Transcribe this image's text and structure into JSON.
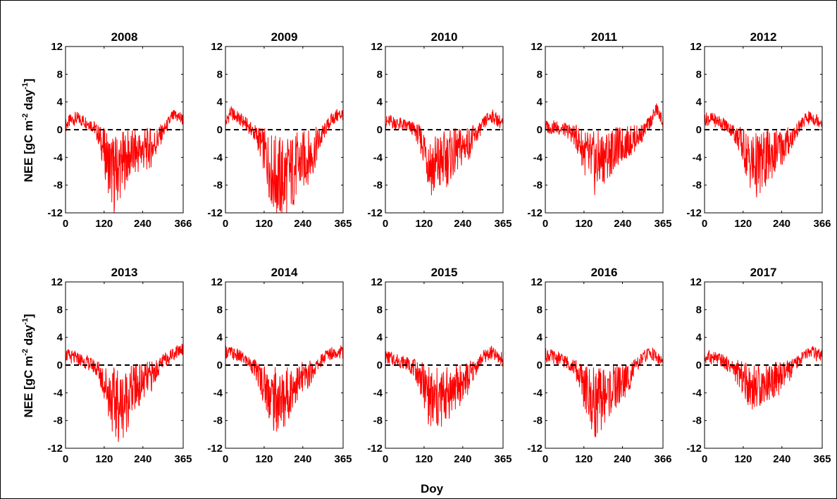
{
  "chart_data": {
    "type": "line",
    "figure": {
      "xlabel": "Doy",
      "ylabel": "NEE [gC m",
      "ylabel_sup1": "-2",
      "ylabel_mid": " day",
      "ylabel_sup2": "-1",
      "ylabel_end": "]"
    },
    "colors": {
      "series": "#ff0000",
      "zero_line": "#000000",
      "frame": "#000000",
      "border": "#000000"
    },
    "zero_line_style": "dashed",
    "grid": false,
    "panels": [
      {
        "title": "2008",
        "xlim": [
          0,
          366
        ],
        "ylim": [
          -12,
          12
        ],
        "xticks": [
          0,
          120,
          240,
          366
        ],
        "xtick_labels": [
          "0",
          "120",
          "240",
          "366"
        ],
        "yticks": [
          12,
          8,
          4,
          0,
          -4,
          -8,
          -12
        ],
        "ytick_labels": [
          "12",
          "8",
          "4",
          "0",
          "-4",
          "-8",
          "-12"
        ],
        "series": [
          {
            "x": [
              0,
              15,
              30,
              45,
              60,
              75,
              90,
              105,
              120,
              135,
              150,
              165,
              180,
              195,
              210,
              225,
              240,
              255,
              270,
              285,
              300,
              315,
              330,
              345,
              366
            ],
            "y": [
              0.6,
              1.3,
              1.6,
              1.5,
              1.2,
              0.9,
              0.3,
              -1.0,
              -3.0,
              -5.0,
              -6.5,
              -5.5,
              -4.5,
              -4.0,
              -3.5,
              -3.2,
              -3.0,
              -2.8,
              -2.5,
              -1.5,
              -0.5,
              0.5,
              1.8,
              2.0,
              1.5
            ]
          }
        ]
      },
      {
        "title": "2009",
        "xlim": [
          0,
          365
        ],
        "ylim": [
          -12,
          12
        ],
        "xticks": [
          0,
          120,
          240,
          365
        ],
        "xtick_labels": [
          "0",
          "120",
          "240",
          "365"
        ],
        "yticks": [
          12,
          8,
          4,
          0,
          -4,
          -8,
          -12
        ],
        "ytick_labels": [
          "12",
          "8",
          "4",
          "0",
          "-4",
          "-8",
          "-12"
        ],
        "series": [
          {
            "x": [
              0,
              15,
              30,
              45,
              60,
              75,
              90,
              105,
              120,
              135,
              150,
              165,
              180,
              195,
              210,
              225,
              240,
              255,
              270,
              285,
              300,
              315,
              330,
              345,
              365
            ],
            "y": [
              0.8,
              2.5,
              2.0,
              1.5,
              1.0,
              0.3,
              -0.5,
              -1.5,
              -3.0,
              -5.0,
              -6.5,
              -7.0,
              -7.2,
              -6.5,
              -6.0,
              -5.0,
              -4.5,
              -4.0,
              -3.5,
              -2.0,
              -0.8,
              0.5,
              1.5,
              2.0,
              2.3
            ]
          }
        ]
      },
      {
        "title": "2010",
        "xlim": [
          0,
          365
        ],
        "ylim": [
          -12,
          12
        ],
        "xticks": [
          0,
          120,
          240,
          365
        ],
        "xtick_labels": [
          "0",
          "120",
          "240",
          "365"
        ],
        "yticks": [
          12,
          8,
          4,
          0,
          -4,
          -8,
          -12
        ],
        "ytick_labels": [
          "12",
          "8",
          "4",
          "0",
          "-4",
          "-8",
          "-12"
        ],
        "series": [
          {
            "x": [
              0,
              15,
              30,
              45,
              60,
              75,
              90,
              105,
              120,
              135,
              150,
              165,
              180,
              195,
              210,
              225,
              240,
              255,
              270,
              285,
              300,
              315,
              330,
              345,
              365
            ],
            "y": [
              1.0,
              1.2,
              1.0,
              0.8,
              0.6,
              0.4,
              0.0,
              -1.0,
              -2.5,
              -4.5,
              -5.5,
              -5.0,
              -4.5,
              -4.0,
              -3.5,
              -3.0,
              -2.5,
              -2.0,
              -1.5,
              -0.5,
              0.5,
              1.5,
              2.0,
              1.5,
              0.8
            ]
          }
        ]
      },
      {
        "title": "2011",
        "xlim": [
          0,
          365
        ],
        "ylim": [
          -12,
          12
        ],
        "xticks": [
          0,
          120,
          240,
          365
        ],
        "xtick_labels": [
          "0",
          "120",
          "240",
          "365"
        ],
        "yticks": [
          12,
          8,
          4,
          0,
          -4,
          -8,
          -12
        ],
        "ytick_labels": [
          "12",
          "8",
          "4",
          "0",
          "-4",
          "-8",
          "-12"
        ],
        "series": [
          {
            "x": [
              0,
              15,
              30,
              45,
              60,
              75,
              90,
              105,
              120,
              135,
              150,
              165,
              180,
              195,
              210,
              225,
              240,
              255,
              270,
              285,
              300,
              315,
              330,
              345,
              365
            ],
            "y": [
              0.5,
              0.3,
              0.4,
              0.2,
              0.0,
              -0.3,
              -0.8,
              -1.8,
              -3.0,
              -4.5,
              -5.0,
              -4.5,
              -4.0,
              -3.5,
              -3.0,
              -2.5,
              -2.2,
              -1.8,
              -1.5,
              -1.0,
              -0.5,
              0.5,
              1.5,
              3.0,
              1.0
            ]
          }
        ]
      },
      {
        "title": "2012",
        "xlim": [
          0,
          366
        ],
        "ylim": [
          -12,
          12
        ],
        "xticks": [
          0,
          120,
          240,
          366
        ],
        "xtick_labels": [
          "0",
          "120",
          "240",
          "366"
        ],
        "yticks": [
          12,
          8,
          4,
          0,
          -4,
          -8,
          -12
        ],
        "ytick_labels": [
          "12",
          "8",
          "4",
          "0",
          "-4",
          "-8",
          "-12"
        ],
        "series": [
          {
            "x": [
              0,
              15,
              30,
              45,
              60,
              75,
              90,
              105,
              120,
              135,
              150,
              165,
              180,
              195,
              210,
              225,
              240,
              255,
              270,
              285,
              300,
              315,
              330,
              345,
              366
            ],
            "y": [
              1.5,
              1.6,
              1.4,
              1.2,
              0.8,
              0.3,
              -0.3,
              -1.2,
              -2.5,
              -4.0,
              -5.0,
              -5.2,
              -4.8,
              -4.0,
              -3.5,
              -3.0,
              -2.5,
              -2.0,
              -1.2,
              -0.3,
              0.8,
              1.5,
              1.8,
              1.5,
              1.2
            ]
          }
        ]
      },
      {
        "title": "2013",
        "xlim": [
          0,
          365
        ],
        "ylim": [
          -12,
          12
        ],
        "xticks": [
          0,
          120,
          240,
          365
        ],
        "xtick_labels": [
          "0",
          "120",
          "240",
          "365"
        ],
        "yticks": [
          12,
          8,
          4,
          0,
          -4,
          -8,
          -12
        ],
        "ytick_labels": [
          "12",
          "8",
          "4",
          "0",
          "-4",
          "-8",
          "-12"
        ],
        "series": [
          {
            "x": [
              0,
              15,
              30,
              45,
              60,
              75,
              90,
              105,
              120,
              135,
              150,
              165,
              180,
              195,
              210,
              225,
              240,
              255,
              270,
              285,
              300,
              315,
              330,
              345,
              365
            ],
            "y": [
              1.5,
              1.2,
              1.0,
              0.8,
              0.5,
              0.2,
              -0.2,
              -1.0,
              -2.5,
              -4.0,
              -5.5,
              -5.8,
              -5.5,
              -4.5,
              -3.5,
              -3.0,
              -2.5,
              -2.0,
              -1.5,
              -0.5,
              0.5,
              1.0,
              1.5,
              2.0,
              2.5
            ]
          }
        ]
      },
      {
        "title": "2014",
        "xlim": [
          0,
          365
        ],
        "ylim": [
          -12,
          12
        ],
        "xticks": [
          0,
          120,
          240,
          365
        ],
        "xtick_labels": [
          "0",
          "120",
          "240",
          "365"
        ],
        "yticks": [
          12,
          8,
          4,
          0,
          -4,
          -8,
          -12
        ],
        "ytick_labels": [
          "12",
          "8",
          "4",
          "0",
          "-4",
          "-8",
          "-12"
        ],
        "series": [
          {
            "x": [
              0,
              15,
              30,
              45,
              60,
              75,
              90,
              105,
              120,
              135,
              150,
              165,
              180,
              195,
              210,
              225,
              240,
              255,
              270,
              285,
              300,
              315,
              330,
              345,
              365
            ],
            "y": [
              2.0,
              1.8,
              1.5,
              1.2,
              0.8,
              0.3,
              -0.5,
              -1.5,
              -2.8,
              -4.0,
              -5.0,
              -5.2,
              -5.0,
              -4.0,
              -3.0,
              -2.5,
              -2.0,
              -1.5,
              -0.8,
              0.0,
              0.8,
              1.5,
              1.8,
              2.0,
              1.8
            ]
          }
        ]
      },
      {
        "title": "2015",
        "xlim": [
          0,
          365
        ],
        "ylim": [
          -12,
          12
        ],
        "xticks": [
          0,
          120,
          240,
          365
        ],
        "xtick_labels": [
          "0",
          "120",
          "240",
          "365"
        ],
        "yticks": [
          12,
          8,
          4,
          0,
          -4,
          -8,
          -12
        ],
        "ytick_labels": [
          "12",
          "8",
          "4",
          "0",
          "-4",
          "-8",
          "-12"
        ],
        "series": [
          {
            "x": [
              0,
              15,
              30,
              45,
              60,
              75,
              90,
              105,
              120,
              135,
              150,
              165,
              180,
              195,
              210,
              225,
              240,
              255,
              270,
              285,
              300,
              315,
              330,
              345,
              365
            ],
            "y": [
              1.2,
              1.0,
              0.8,
              0.6,
              0.4,
              0.0,
              -0.5,
              -1.5,
              -3.0,
              -4.5,
              -5.5,
              -5.0,
              -4.5,
              -4.0,
              -3.5,
              -3.0,
              -2.5,
              -2.0,
              -1.0,
              0.0,
              1.0,
              1.5,
              1.8,
              1.2,
              0.8
            ]
          }
        ]
      },
      {
        "title": "2016",
        "xlim": [
          0,
          366
        ],
        "ylim": [
          -12,
          12
        ],
        "xticks": [
          0,
          120,
          240,
          366
        ],
        "xtick_labels": [
          "0",
          "120",
          "240",
          "366"
        ],
        "yticks": [
          12,
          8,
          4,
          0,
          -4,
          -8,
          -12
        ],
        "ytick_labels": [
          "12",
          "8",
          "4",
          "0",
          "-4",
          "-8",
          "-12"
        ],
        "series": [
          {
            "x": [
              0,
              15,
              30,
              45,
              60,
              75,
              90,
              105,
              120,
              135,
              150,
              165,
              180,
              195,
              210,
              225,
              240,
              255,
              270,
              285,
              300,
              315,
              330,
              345,
              366
            ],
            "y": [
              1.5,
              1.3,
              1.1,
              0.9,
              0.6,
              0.2,
              -0.3,
              -1.5,
              -3.0,
              -4.5,
              -5.5,
              -5.2,
              -4.5,
              -4.0,
              -3.5,
              -3.0,
              -2.5,
              -2.0,
              -1.0,
              0.0,
              0.8,
              1.5,
              1.8,
              1.2,
              0.4
            ]
          }
        ]
      },
      {
        "title": "2017",
        "xlim": [
          0,
          365
        ],
        "ylim": [
          -12,
          12
        ],
        "xticks": [
          0,
          120,
          240,
          365
        ],
        "xtick_labels": [
          "0",
          "120",
          "240",
          "365"
        ],
        "yticks": [
          12,
          8,
          4,
          0,
          -4,
          -8,
          -12
        ],
        "ytick_labels": [
          "12",
          "8",
          "4",
          "0",
          "-4",
          "-8",
          "-12"
        ],
        "series": [
          {
            "x": [
              0,
              15,
              30,
              45,
              60,
              75,
              90,
              105,
              120,
              135,
              150,
              165,
              180,
              195,
              210,
              225,
              240,
              255,
              270,
              285,
              300,
              315,
              330,
              345,
              365
            ],
            "y": [
              1.0,
              1.2,
              1.0,
              0.8,
              0.5,
              0.0,
              -0.5,
              -1.2,
              -2.0,
              -2.8,
              -3.2,
              -3.0,
              -2.8,
              -2.5,
              -2.2,
              -2.0,
              -1.8,
              -1.2,
              -0.5,
              0.3,
              1.0,
              1.5,
              2.0,
              1.5,
              1.2
            ]
          }
        ]
      }
    ]
  }
}
